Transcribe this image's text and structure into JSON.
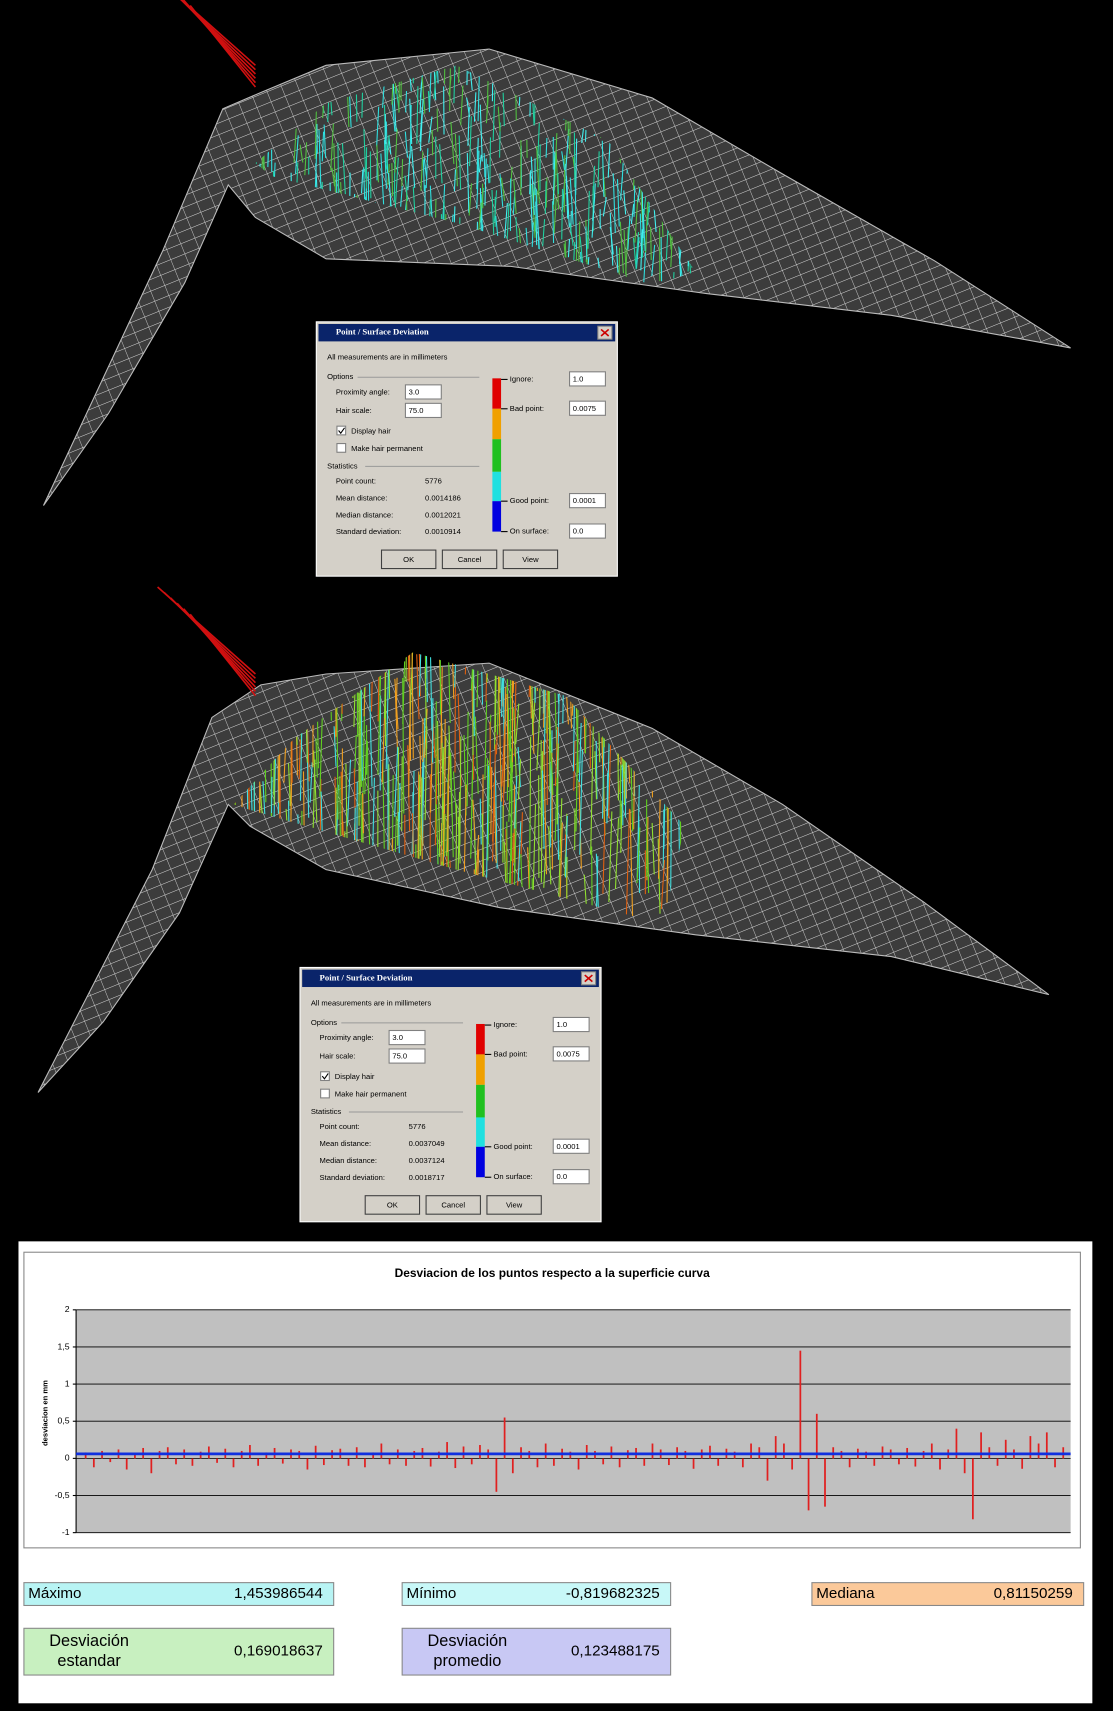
{
  "dialogs": [
    {
      "title": "Point / Surface Deviation",
      "note": "All measurements are in millimeters",
      "options_label": "Options",
      "proximity_label": "Proximity angle:",
      "proximity": "3.0",
      "hair_scale_label": "Hair scale:",
      "hair_scale": "75.0",
      "display_hair": "Display hair",
      "permanent": "Make hair permanent",
      "statistics_label": "Statistics",
      "stats": [
        {
          "label": "Point count:",
          "value": "5776"
        },
        {
          "label": "Mean distance:",
          "value": "0.0014186"
        },
        {
          "label": "Median distance:",
          "value": "0.0012021"
        },
        {
          "label": "Standard deviation:",
          "value": "0.0010914"
        }
      ],
      "scale": [
        {
          "label": "Ignore:",
          "value": "1.0"
        },
        {
          "label": "Bad point:",
          "value": "0.0075"
        },
        {
          "label": "Good point:",
          "value": "0.0001"
        },
        {
          "label": "On surface:",
          "value": "0.0"
        }
      ],
      "buttons": [
        "OK",
        "Cancel",
        "View"
      ]
    },
    {
      "title": "Point / Surface Deviation",
      "note": "All measurements are in millimeters",
      "options_label": "Options",
      "proximity_label": "Proximity angle:",
      "proximity": "3.0",
      "hair_scale_label": "Hair scale:",
      "hair_scale": "75.0",
      "display_hair": "Display hair",
      "permanent": "Make hair permanent",
      "statistics_label": "Statistics",
      "stats": [
        {
          "label": "Point count:",
          "value": "5776"
        },
        {
          "label": "Mean distance:",
          "value": "0.0037049"
        },
        {
          "label": "Median distance:",
          "value": "0.0037124"
        },
        {
          "label": "Standard deviation:",
          "value": "0.0018717"
        }
      ],
      "scale": [
        {
          "label": "Ignore:",
          "value": "1.0"
        },
        {
          "label": "Bad point:",
          "value": "0.0075"
        },
        {
          "label": "Good point:",
          "value": "0.0001"
        },
        {
          "label": "On surface:",
          "value": "0.0"
        }
      ],
      "buttons": [
        "OK",
        "Cancel",
        "View"
      ]
    }
  ],
  "chart_data": {
    "type": "bar",
    "title": "Desviacion de los puntos respecto a la superficie curva",
    "y_label": "desviacion en mm",
    "color": "#e02020",
    "values": [
      0.08,
      -0.12,
      0.1,
      -0.05,
      0.12,
      -0.15,
      0.07,
      0.14,
      -0.2,
      0.1,
      0.15,
      -0.08,
      0.12,
      -0.1,
      0.09,
      0.16,
      -0.06,
      0.13,
      -0.12,
      0.1,
      0.18,
      -0.1,
      0.08,
      0.14,
      -0.07,
      0.12,
      0.1,
      -0.15,
      0.17,
      -0.09,
      0.11,
      0.13,
      -0.1,
      0.15,
      -0.12,
      0.08,
      0.2,
      -0.08,
      0.12,
      -0.1,
      0.1,
      0.14,
      -0.11,
      0.09,
      0.22,
      -0.13,
      0.16,
      -0.08,
      0.18,
      0.12,
      -0.45,
      0.55,
      -0.2,
      0.15,
      0.1,
      -0.12,
      0.2,
      -0.1,
      0.13,
      0.09,
      -0.15,
      0.18,
      0.1,
      -0.08,
      0.16,
      -0.12,
      0.11,
      0.14,
      -0.1,
      0.2,
      0.12,
      -0.09,
      0.15,
      0.1,
      -0.14,
      0.12,
      0.17,
      -0.1,
      0.13,
      0.09,
      -0.12,
      0.2,
      0.15,
      -0.3,
      0.3,
      0.2,
      -0.15,
      1.45,
      -0.7,
      0.6,
      -0.65,
      0.15,
      0.1,
      -0.12,
      0.13,
      0.09,
      -0.1,
      0.16,
      0.12,
      -0.08,
      0.14,
      -0.11,
      0.1,
      0.2,
      -0.15,
      0.12,
      0.4,
      -0.2,
      -0.82,
      0.35,
      0.15,
      -0.1,
      0.25,
      0.12,
      -0.14,
      0.3,
      0.2,
      0.35,
      -0.12,
      0.15
    ],
    "reference_line": {
      "value": 0.06,
      "color": "#1030e0"
    },
    "ylim": [
      -1,
      2
    ],
    "yticks": [
      -1,
      {
        "value": -0.5,
        "label": "-0,5"
      },
      0,
      {
        "value": 0.5,
        "label": "0,5"
      },
      1,
      {
        "value": 1.5,
        "label": "1,5"
      },
      2
    ],
    "grid": true
  },
  "stats": {
    "rows": [
      [
        {
          "label": [
            "Máximo"
          ],
          "value": "1,453986544"
        },
        {
          "label": [
            "Mínimo"
          ],
          "value": "-0,819682325"
        },
        {
          "label": [
            "Mediana"
          ],
          "value": "0,81150259"
        }
      ],
      [
        {
          "label": [
            "Desviación",
            "estandar"
          ],
          "value": "0,169018637"
        },
        {
          "label": [
            "Desviación",
            "promedio"
          ],
          "value": "0,123488175"
        }
      ]
    ]
  }
}
